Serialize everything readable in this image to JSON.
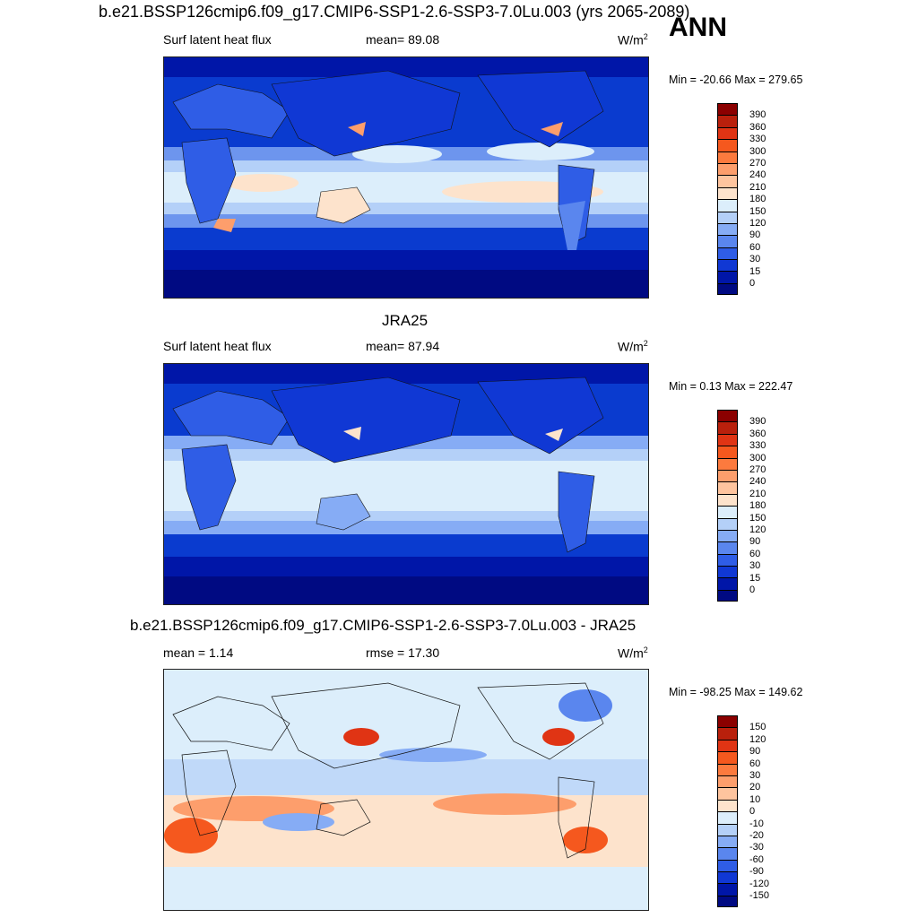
{
  "header": {
    "title": "b.e21.BSSP126cmip6.f09_g17.CMIP6-SSP1-2.6-SSP3-7.0Lu.003 (yrs 2065-2089)",
    "season": "ANN"
  },
  "panels": [
    {
      "title": "",
      "left_label": "Surf latent heat flux",
      "center_label": "mean=  89.08",
      "units": "W/m",
      "units_sup": "2",
      "minmax": "Min = -20.66 Max = 279.65",
      "colorbar_labels": [
        "390",
        "360",
        "330",
        "300",
        "270",
        "240",
        "210",
        "180",
        "150",
        "120",
        "90",
        "60",
        "30",
        "15",
        "0"
      ],
      "colorbar_colors": [
        "#8b0000",
        "#b9200c",
        "#e03414",
        "#f5581e",
        "#fc7a3e",
        "#fd9e6c",
        "#fec49e",
        "#fde3cc",
        "#dceefb",
        "#b4d0f8",
        "#86acf5",
        "#5a86ee",
        "#2f5de6",
        "#1038d4",
        "#0016a8",
        "#000a82"
      ]
    },
    {
      "title": "JRA25",
      "left_label": "Surf latent heat flux",
      "center_label": "mean=  87.94",
      "units": "W/m",
      "units_sup": "2",
      "minmax": "Min =   0.13 Max = 222.47",
      "colorbar_labels": [
        "390",
        "360",
        "330",
        "300",
        "270",
        "240",
        "210",
        "180",
        "150",
        "120",
        "90",
        "60",
        "30",
        "15",
        "0"
      ],
      "colorbar_colors": [
        "#8b0000",
        "#b9200c",
        "#e03414",
        "#f5581e",
        "#fc7a3e",
        "#fd9e6c",
        "#fec49e",
        "#fde3cc",
        "#dceefb",
        "#b4d0f8",
        "#86acf5",
        "#5a86ee",
        "#2f5de6",
        "#1038d4",
        "#0016a8",
        "#000a82"
      ]
    },
    {
      "title": "b.e21.BSSP126cmip6.f09_g17.CMIP6-SSP1-2.6-SSP3-7.0Lu.003 - JRA25",
      "left_label": "mean =   1.14",
      "center_label": "rmse =  17.30",
      "units": "W/m",
      "units_sup": "2",
      "minmax": "Min = -98.25 Max = 149.62",
      "colorbar_labels": [
        "150",
        "120",
        "90",
        "60",
        "30",
        "20",
        "10",
        "0",
        "-10",
        "-20",
        "-30",
        "-60",
        "-90",
        "-120",
        "-150"
      ],
      "colorbar_colors": [
        "#8b0000",
        "#b9200c",
        "#e03414",
        "#f5581e",
        "#fc7a3e",
        "#fd9e6c",
        "#fec49e",
        "#fde3cc",
        "#dceefb",
        "#b4d0f8",
        "#86acf5",
        "#5a86ee",
        "#2f5de6",
        "#1038d4",
        "#0016a8",
        "#000a82"
      ]
    }
  ]
}
